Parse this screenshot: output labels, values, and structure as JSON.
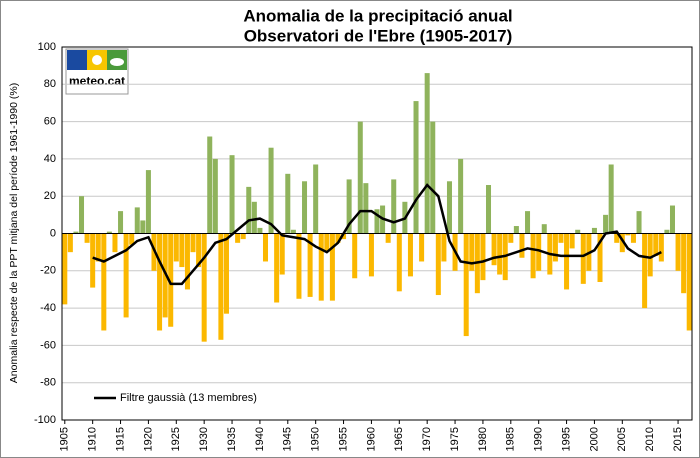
{
  "logo": "meteo.cat",
  "chart_data": {
    "type": "bar",
    "title": [
      "Anomalia  de la precipitació anual",
      "Observatori de l'Ebre (1905-2017)"
    ],
    "y_label": "Anomalia respecte de la PPT  mitjana del període 1961-1990 (%)",
    "x": [
      1905,
      1906,
      1907,
      1908,
      1909,
      1910,
      1911,
      1912,
      1913,
      1914,
      1915,
      1916,
      1917,
      1918,
      1919,
      1920,
      1921,
      1922,
      1923,
      1924,
      1925,
      1926,
      1927,
      1928,
      1929,
      1930,
      1931,
      1932,
      1933,
      1934,
      1935,
      1936,
      1937,
      1938,
      1939,
      1940,
      1941,
      1942,
      1943,
      1944,
      1945,
      1946,
      1947,
      1948,
      1949,
      1950,
      1951,
      1952,
      1953,
      1954,
      1955,
      1956,
      1957,
      1958,
      1959,
      1960,
      1961,
      1962,
      1963,
      1964,
      1965,
      1966,
      1967,
      1968,
      1969,
      1970,
      1971,
      1972,
      1973,
      1974,
      1975,
      1976,
      1977,
      1978,
      1979,
      1980,
      1981,
      1982,
      1983,
      1984,
      1985,
      1986,
      1987,
      1988,
      1989,
      1990,
      1991,
      1992,
      1993,
      1994,
      1995,
      1996,
      1997,
      1998,
      1999,
      2000,
      2001,
      2002,
      2003,
      2004,
      2005,
      2006,
      2007,
      2008,
      2009,
      2010,
      2011,
      2012,
      2013,
      2014,
      2015,
      2016,
      2017
    ],
    "series": [
      {
        "positive_color": "#8fb35c",
        "negative_color": "#fbb800",
        "values": [
          -38,
          -10,
          1,
          20,
          -5,
          -29,
          -15,
          -52,
          1,
          -10,
          12,
          -45,
          -6,
          14,
          7,
          34,
          -20,
          -52,
          -45,
          -50,
          -15,
          -18,
          -30,
          -10,
          -18,
          -58,
          52,
          40,
          -57,
          -43,
          42,
          -5,
          -3,
          25,
          17,
          3,
          -15,
          46,
          -37,
          -22,
          32,
          2,
          -35,
          28,
          -34,
          37,
          -36,
          -10,
          -36,
          -5,
          -3,
          29,
          -24,
          60,
          27,
          -23,
          13,
          15,
          -5,
          29,
          -31,
          17,
          -23,
          71,
          -15,
          86,
          60,
          -33,
          -15,
          28,
          -20,
          40,
          -55,
          -20,
          -32,
          -25,
          26,
          -17,
          -22,
          -25,
          -5,
          4,
          -13,
          12,
          -24,
          -20,
          5,
          -22,
          -15,
          -5,
          -30,
          -8,
          2,
          -27,
          -20,
          3,
          -26,
          10,
          37,
          -5,
          -10,
          -1,
          -5,
          12,
          -40,
          -23,
          -12,
          -15,
          2,
          15,
          -20,
          -32,
          -52
        ]
      },
      {
        "name": "Filtre gaussià (13 membres)",
        "type": "line",
        "color": "#000000",
        "x": [
          1910,
          1912,
          1914,
          1916,
          1918,
          1920,
          1922,
          1924,
          1926,
          1928,
          1930,
          1932,
          1934,
          1936,
          1938,
          1940,
          1942,
          1944,
          1946,
          1948,
          1950,
          1952,
          1954,
          1956,
          1958,
          1960,
          1962,
          1964,
          1966,
          1968,
          1970,
          1972,
          1974,
          1976,
          1978,
          1980,
          1982,
          1984,
          1986,
          1988,
          1990,
          1992,
          1994,
          1996,
          1998,
          2000,
          2002,
          2004,
          2006,
          2008,
          2010,
          2012
        ],
        "values": [
          -13,
          -15,
          -12,
          -9,
          -4,
          -2,
          -15,
          -27,
          -27,
          -20,
          -13,
          -5,
          -3,
          2,
          7,
          8,
          5,
          -1,
          -2,
          -3,
          -7,
          -10,
          -5,
          5,
          12,
          12,
          8,
          6,
          8,
          18,
          26,
          20,
          -4,
          -15,
          -16,
          -15,
          -13,
          -12,
          -10,
          -8,
          -9,
          -11,
          -12,
          -12,
          -12,
          -9,
          0,
          1,
          -8,
          -12,
          -13,
          -10
        ]
      }
    ],
    "xlim": [
      1904.5,
      2017.5
    ],
    "xticks": [
      1905,
      1910,
      1915,
      1920,
      1925,
      1930,
      1935,
      1940,
      1945,
      1950,
      1955,
      1960,
      1965,
      1970,
      1975,
      1980,
      1985,
      1990,
      1995,
      2000,
      2005,
      2010,
      2015
    ],
    "ylim": [
      -100,
      100
    ],
    "yticks": [
      -100,
      -80,
      -60,
      -40,
      -20,
      0,
      20,
      40,
      60,
      80,
      100
    ],
    "grid": true,
    "legend": "lower left"
  }
}
